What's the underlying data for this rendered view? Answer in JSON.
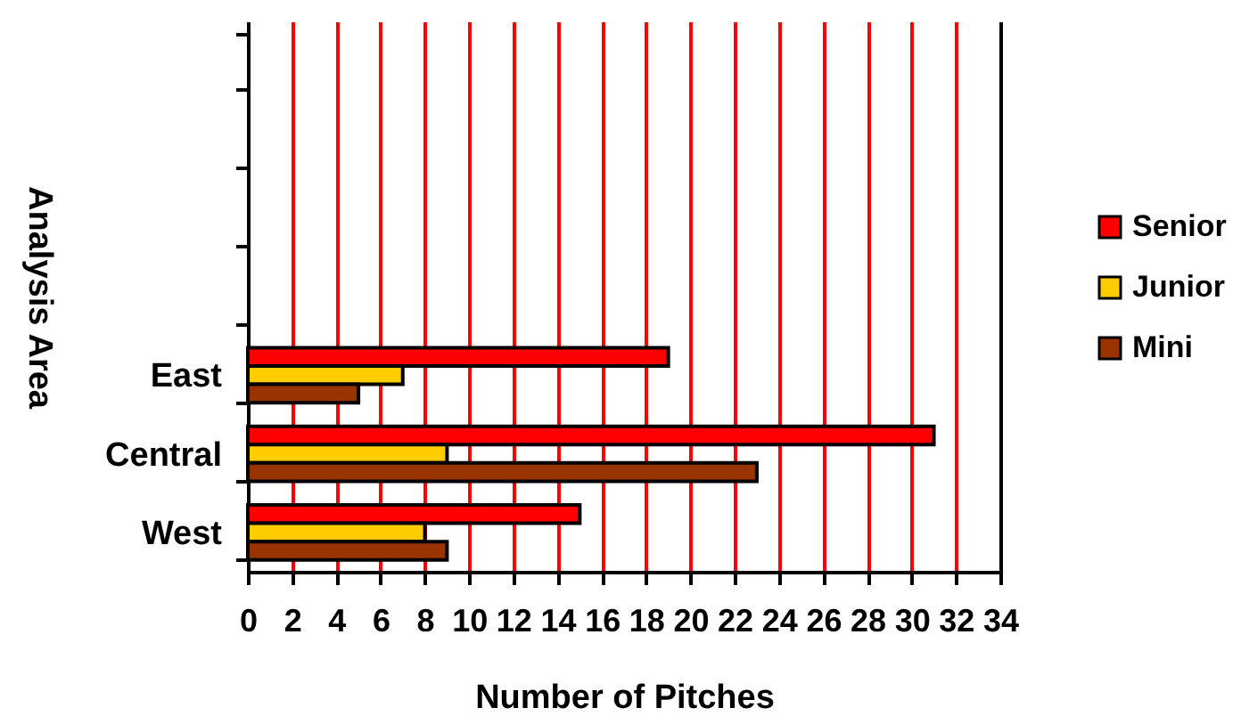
{
  "chart_data": {
    "type": "bar",
    "orientation": "horizontal",
    "xlabel": "Number of Pitches",
    "ylabel": "Analysis Area",
    "categories": [
      null,
      null,
      null,
      null,
      "East",
      "Central",
      "West"
    ],
    "series": [
      {
        "name": "Senior",
        "color": "#ff0000",
        "values": [
          null,
          null,
          null,
          null,
          19,
          31,
          15
        ]
      },
      {
        "name": "Junior",
        "color": "#ffcc00",
        "values": [
          null,
          null,
          null,
          null,
          7,
          9,
          8
        ]
      },
      {
        "name": "Mini",
        "color": "#993300",
        "values": [
          null,
          null,
          null,
          null,
          5,
          23,
          9
        ]
      }
    ],
    "xlim": [
      0,
      34
    ],
    "xticks": [
      0,
      2,
      4,
      6,
      8,
      10,
      12,
      14,
      16,
      18,
      20,
      22,
      24,
      26,
      28,
      30,
      32,
      34
    ],
    "grid": "x",
    "legend": "right"
  }
}
